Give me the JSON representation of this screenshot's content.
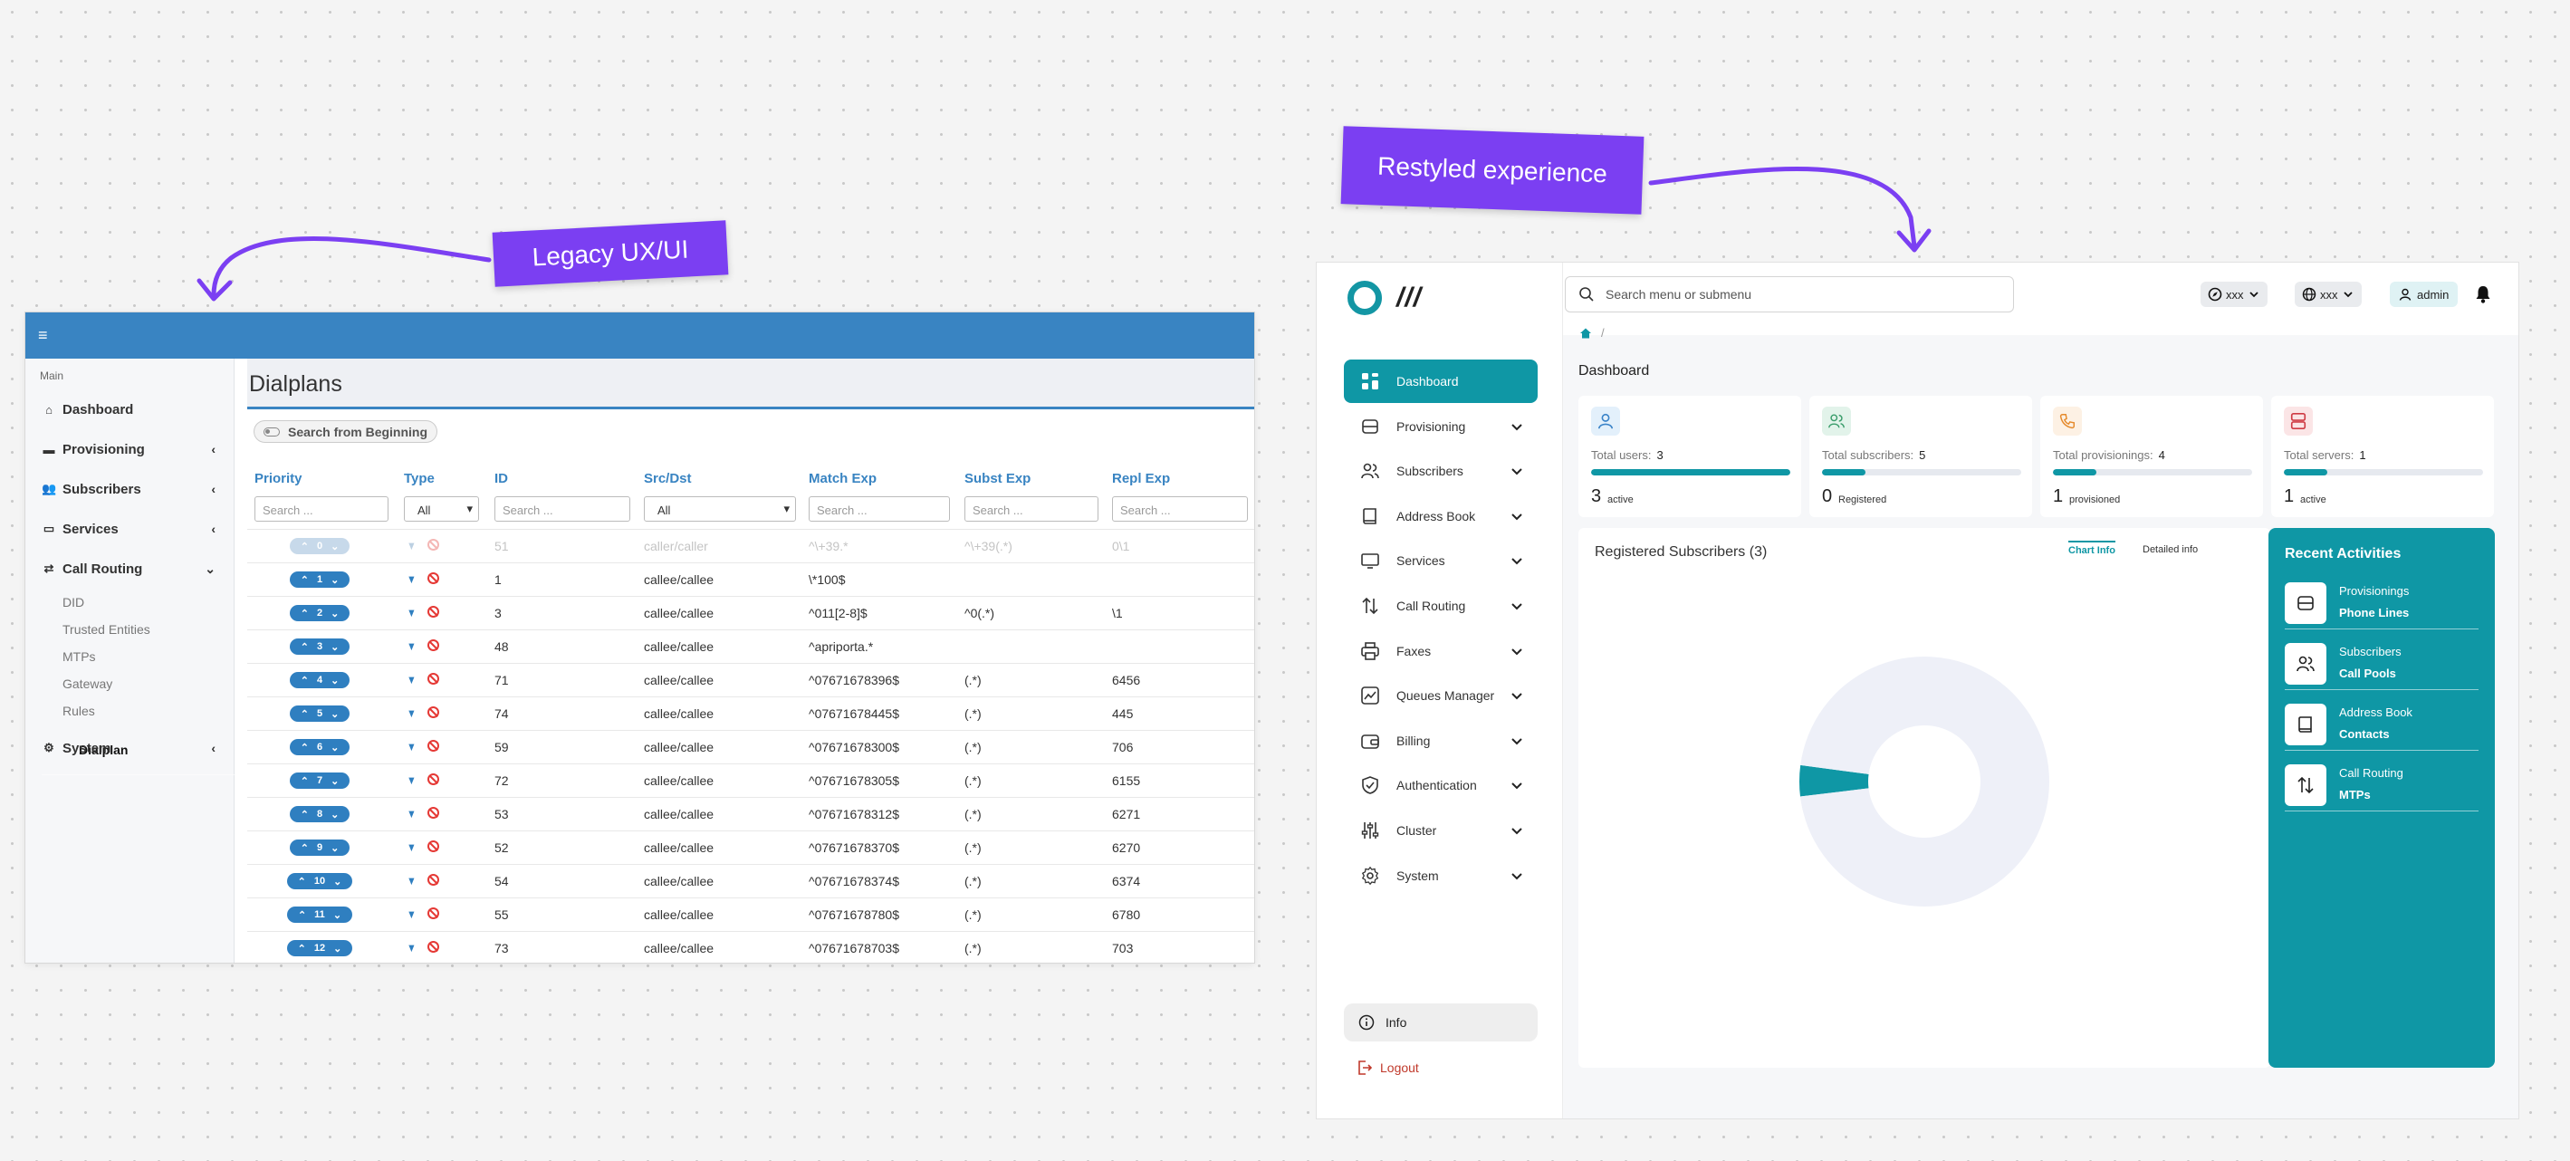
{
  "annotations": {
    "legacy": "Legacy UX/UI",
    "restyled": "Restyled experience"
  },
  "legacy": {
    "menu_icon": "hamburger-icon",
    "sidebar": {
      "section": "Main",
      "items": [
        {
          "label": "Dashboard",
          "icon": "home-icon"
        },
        {
          "label": "Provisioning",
          "icon": "hdd-icon",
          "caret": "‹"
        },
        {
          "label": "Subscribers",
          "icon": "users-icon",
          "caret": "‹"
        },
        {
          "label": "Services",
          "icon": "desktop-icon",
          "caret": "‹"
        },
        {
          "label": "Call Routing",
          "icon": "exchange-icon",
          "caret": "⌄"
        },
        {
          "label": "System",
          "icon": "cogs-icon",
          "caret": "‹"
        }
      ],
      "subitems": [
        "DID",
        "Trusted Entities",
        "MTPs",
        "Gateway",
        "Rules",
        "Dialplan"
      ],
      "active_subitem": "Dialplan"
    },
    "title": "Dialplans",
    "search_from_beginning": "Search from Beginning",
    "columns": [
      "Priority",
      "Type",
      "ID",
      "Src/Dst",
      "Match Exp",
      "Subst Exp",
      "Repl Exp"
    ],
    "filters": {
      "search": "Search ...",
      "all": "All"
    },
    "rows": [
      {
        "priority": "0",
        "id": "51",
        "src": "caller/caller",
        "match": "^\\+39.*",
        "subst": "^\\+39(.*)",
        "repl": "0\\1"
      },
      {
        "priority": "1",
        "id": "1",
        "src": "callee/callee",
        "match": "\\*100$",
        "subst": "",
        "repl": ""
      },
      {
        "priority": "2",
        "id": "3",
        "src": "callee/callee",
        "match": "^011[2-8]$",
        "subst": "^0(.*)",
        "repl": "\\1"
      },
      {
        "priority": "3",
        "id": "48",
        "src": "callee/callee",
        "match": "^apriporta.*",
        "subst": "",
        "repl": ""
      },
      {
        "priority": "4",
        "id": "71",
        "src": "callee/callee",
        "match": "^07671678396$",
        "subst": "(.*)",
        "repl": "6456"
      },
      {
        "priority": "5",
        "id": "74",
        "src": "callee/callee",
        "match": "^07671678445$",
        "subst": "(.*)",
        "repl": "445"
      },
      {
        "priority": "6",
        "id": "59",
        "src": "callee/callee",
        "match": "^07671678300$",
        "subst": "(.*)",
        "repl": "706"
      },
      {
        "priority": "7",
        "id": "72",
        "src": "callee/callee",
        "match": "^07671678305$",
        "subst": "(.*)",
        "repl": "6155"
      },
      {
        "priority": "8",
        "id": "53",
        "src": "callee/callee",
        "match": "^07671678312$",
        "subst": "(.*)",
        "repl": "6271"
      },
      {
        "priority": "9",
        "id": "52",
        "src": "callee/callee",
        "match": "^07671678370$",
        "subst": "(.*)",
        "repl": "6270"
      },
      {
        "priority": "10",
        "id": "54",
        "src": "callee/callee",
        "match": "^07671678374$",
        "subst": "(.*)",
        "repl": "6374"
      },
      {
        "priority": "11",
        "id": "55",
        "src": "callee/callee",
        "match": "^07671678780$",
        "subst": "(.*)",
        "repl": "6780"
      },
      {
        "priority": "12",
        "id": "73",
        "src": "callee/callee",
        "match": "^07671678703$",
        "subst": "(.*)",
        "repl": "703"
      }
    ]
  },
  "restyled": {
    "logo_text": "///",
    "search_placeholder": "Search menu or submenu",
    "selectors": [
      {
        "label": "xxx",
        "icon": "compass-icon"
      },
      {
        "label": "xxx",
        "icon": "globe-icon"
      }
    ],
    "user": "admin",
    "breadcrumb_sep": "/",
    "page_title": "Dashboard",
    "nav": [
      {
        "label": "Dashboard",
        "icon": "grid-icon",
        "active": true
      },
      {
        "label": "Provisioning",
        "icon": "database-icon"
      },
      {
        "label": "Subscribers",
        "icon": "users-icon"
      },
      {
        "label": "Address Book",
        "icon": "book-icon"
      },
      {
        "label": "Services",
        "icon": "monitor-icon"
      },
      {
        "label": "Call Routing",
        "icon": "arrows-updown-icon"
      },
      {
        "label": "Faxes",
        "icon": "printer-icon"
      },
      {
        "label": "Queues Manager",
        "icon": "chart-line-icon"
      },
      {
        "label": "Billing",
        "icon": "wallet-icon"
      },
      {
        "label": "Authentication",
        "icon": "shield-check-icon"
      },
      {
        "label": "Cluster",
        "icon": "sliders-icon"
      },
      {
        "label": "System",
        "icon": "gear-icon"
      }
    ],
    "info": "Info",
    "logout": "Logout",
    "cards": [
      {
        "label": "Total users:",
        "total": "3",
        "value": "3",
        "sub": "active",
        "fraction": 1.0,
        "icon": "user-icon",
        "icon_bg": "#e3f0fb",
        "icon_color": "#3a83c8"
      },
      {
        "label": "Total subscribers:",
        "total": "5",
        "value": "0",
        "sub": "Registered",
        "fraction": 0.22,
        "icon": "users-icon",
        "icon_bg": "#e2f3ea",
        "icon_color": "#3a9d6b"
      },
      {
        "label": "Total provisionings:",
        "total": "4",
        "value": "1",
        "sub": "provisioned",
        "fraction": 0.22,
        "icon": "phone-icon",
        "icon_bg": "#fdf1e4",
        "icon_color": "#e58a2c"
      },
      {
        "label": "Total servers:",
        "total": "1",
        "value": "1",
        "sub": "active",
        "fraction": 0.22,
        "icon": "server-icon",
        "icon_bg": "#fbe5e6",
        "icon_color": "#cf3b44"
      }
    ],
    "registered": {
      "title": "Registered Subscribers (3)",
      "tabs": [
        "Chart Info",
        "Detailed info"
      ],
      "active_tab": "Chart Info"
    },
    "recent": {
      "title": "Recent Activities",
      "items": [
        {
          "label": "Provisionings",
          "value": "Phone Lines",
          "icon": "database-icon"
        },
        {
          "label": "Subscribers",
          "value": "Call Pools",
          "icon": "users-icon"
        },
        {
          "label": "Address Book",
          "value": "Contacts",
          "icon": "book-icon"
        },
        {
          "label": "Call Routing",
          "value": "MTPs",
          "icon": "arrows-updown-icon"
        }
      ]
    }
  },
  "chart_data": {
    "type": "pie",
    "slices": [
      {
        "value": 0.04,
        "color": "#0f97a5"
      },
      {
        "value": 0.96,
        "color": "#eef0f8"
      }
    ],
    "title": ""
  }
}
